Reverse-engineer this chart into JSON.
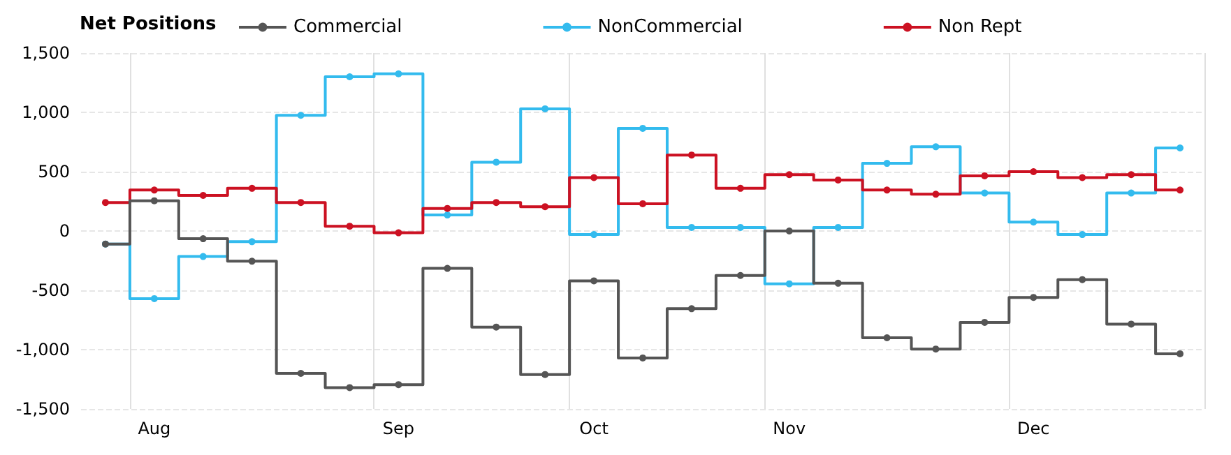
{
  "chart_data": {
    "type": "step",
    "legend_title": "Net Positions",
    "categories": [
      null,
      "Aug",
      null,
      null,
      null,
      null,
      "Sep",
      null,
      null,
      null,
      "Oct",
      null,
      null,
      null,
      "Nov",
      null,
      null,
      null,
      null,
      "Dec",
      null,
      null,
      null
    ],
    "series": [
      {
        "name": "Commercial",
        "color": "#555555",
        "values": [
          -110,
          255,
          -65,
          -255,
          -1200,
          -1320,
          -1295,
          -315,
          -810,
          -1210,
          -420,
          -1070,
          -655,
          -375,
          0,
          -440,
          -900,
          -995,
          -770,
          -560,
          -410,
          -785,
          -1035
        ]
      },
      {
        "name": "NonCommercial",
        "color": "#33bbee",
        "values": [
          -110,
          -570,
          -215,
          -90,
          975,
          1300,
          1325,
          135,
          580,
          1030,
          -30,
          865,
          30,
          30,
          -445,
          30,
          570,
          710,
          320,
          75,
          -30,
          320,
          700
        ]
      },
      {
        "name": "Non Rept",
        "color": "#cc1122",
        "values": [
          240,
          345,
          300,
          360,
          240,
          40,
          -15,
          190,
          240,
          205,
          450,
          230,
          640,
          360,
          475,
          430,
          345,
          310,
          465,
          500,
          450,
          475,
          345
        ]
      }
    ],
    "ylim": [
      -1500,
      1500
    ],
    "yticks": [
      {
        "value": -1500,
        "label": "-1,500"
      },
      {
        "value": -1000,
        "label": "-1,000"
      },
      -500,
      0,
      500,
      {
        "value": 1000,
        "label": "1,000"
      },
      {
        "value": 1500,
        "label": "1,500"
      }
    ],
    "grid": true,
    "legend": "top",
    "marker": "circle",
    "line_style": "solid"
  }
}
